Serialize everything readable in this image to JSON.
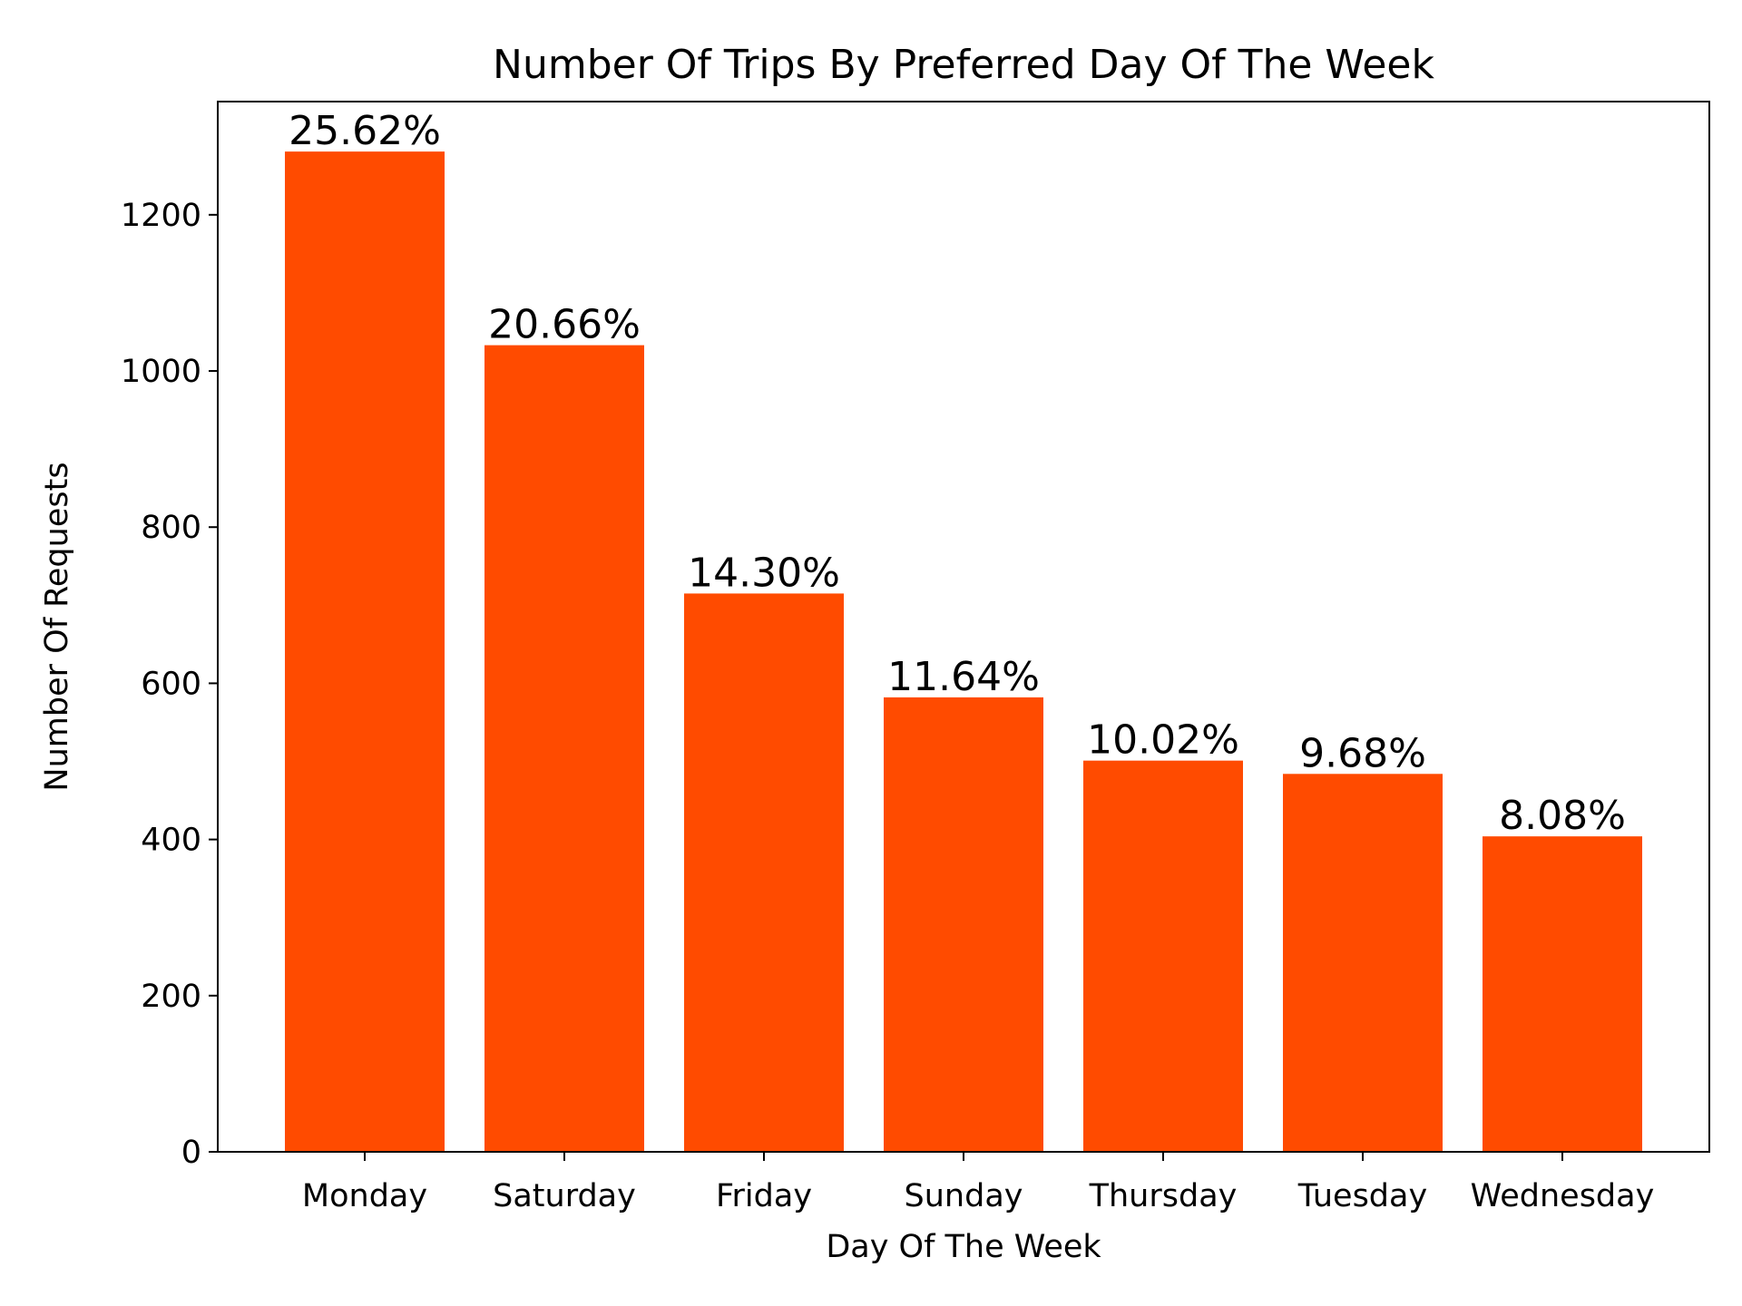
{
  "chart_data": {
    "type": "bar",
    "title": "Number Of Trips By Preferred Day Of The Week",
    "xlabel": "Day Of The Week",
    "ylabel": "Number Of Requests",
    "categories": [
      "Monday",
      "Saturday",
      "Friday",
      "Sunday",
      "Thursday",
      "Tuesday",
      "Wednesday"
    ],
    "values": [
      1281,
      1033,
      715,
      582,
      501,
      484,
      404
    ],
    "data_labels": [
      "25.62%",
      "20.66%",
      "14.30%",
      "11.64%",
      "10.02%",
      "9.68%",
      "8.08%"
    ],
    "yticks": [
      0,
      200,
      400,
      600,
      800,
      1000,
      1200
    ],
    "ylim": [
      0,
      1345
    ],
    "bar_color": "#ff4b00",
    "grid": false,
    "legend": "none"
  }
}
